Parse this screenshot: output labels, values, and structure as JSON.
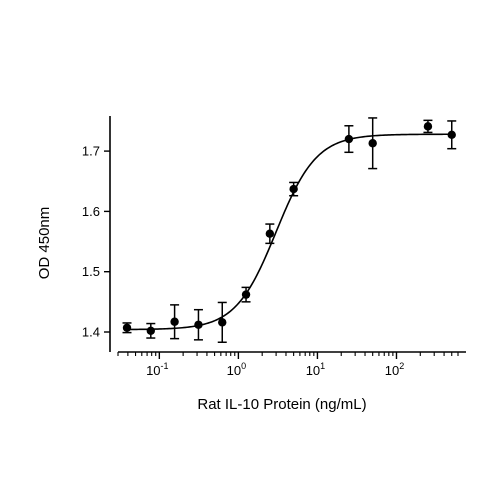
{
  "chart_data": {
    "type": "scatter",
    "title": "",
    "xlabel": "Rat IL-10 Protein (ng/mL)",
    "ylabel": "OD 450nm",
    "xscale": "log",
    "xlim": [
      0.03,
      600
    ],
    "ylim": [
      1.38,
      1.77
    ],
    "grid": false,
    "legend": "none",
    "x_tick_labels": [
      {
        "base": "10",
        "exp": "-1",
        "value": 0.1
      },
      {
        "base": "10",
        "exp": "0",
        "value": 1
      },
      {
        "base": "10",
        "exp": "1",
        "value": 10
      },
      {
        "base": "10",
        "exp": "2",
        "value": 100
      }
    ],
    "y_tick_labels": [
      "1.4",
      "1.5",
      "1.6",
      "1.7"
    ],
    "y_ticks": [
      1.4,
      1.5,
      1.6,
      1.7
    ],
    "series": [
      {
        "points": [
          {
            "x": 0.039,
            "y": 1.407,
            "err": 0.008
          },
          {
            "x": 0.078,
            "y": 1.402,
            "err": 0.012
          },
          {
            "x": 0.156,
            "y": 1.417,
            "err": 0.028
          },
          {
            "x": 0.3125,
            "y": 1.412,
            "err": 0.025
          },
          {
            "x": 0.625,
            "y": 1.416,
            "err": 0.033
          },
          {
            "x": 1.25,
            "y": 1.462,
            "err": 0.012
          },
          {
            "x": 2.5,
            "y": 1.563,
            "err": 0.016
          },
          {
            "x": 5,
            "y": 1.637,
            "err": 0.011
          },
          {
            "x": 25,
            "y": 1.72,
            "err": 0.022
          },
          {
            "x": 50,
            "y": 1.713,
            "err": 0.042
          },
          {
            "x": 250,
            "y": 1.741,
            "err": 0.01
          },
          {
            "x": 500,
            "y": 1.727,
            "err": 0.023
          }
        ]
      }
    ],
    "fit": {
      "model": "4PL",
      "bottom": 1.404,
      "top": 1.728,
      "ec50": 3.0,
      "hill": 1.7
    }
  }
}
